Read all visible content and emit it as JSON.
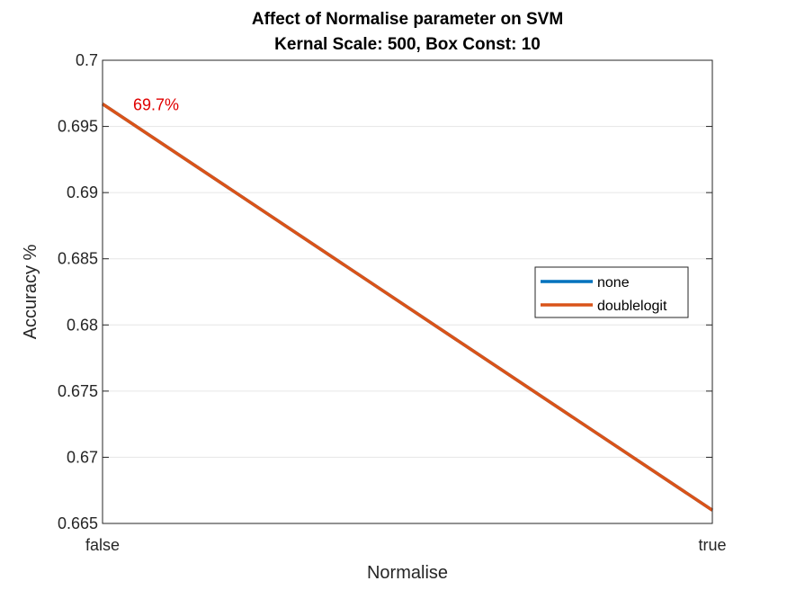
{
  "chart_data": {
    "type": "line",
    "title": "Affect of Normalise parameter on SVM",
    "subtitle": "Kernal Scale: 500, Box Const: 10",
    "xlabel": "Normalise",
    "ylabel": "Accuracy %",
    "categories": [
      "false",
      "true"
    ],
    "ylim": [
      0.665,
      0.7
    ],
    "yticks": [
      "0.665",
      "0.67",
      "0.675",
      "0.68",
      "0.685",
      "0.69",
      "0.695",
      "0.7"
    ],
    "ytick_values": [
      0.665,
      0.67,
      0.675,
      0.68,
      0.685,
      0.69,
      0.695,
      0.7
    ],
    "grid": "horizontal",
    "legend_position": "right",
    "series": [
      {
        "name": "none",
        "values": [
          0.6967,
          0.666
        ],
        "color": "#0072BD"
      },
      {
        "name": "doublelogit",
        "values": [
          0.6967,
          0.666
        ],
        "color": "#D95319"
      }
    ],
    "annotations": [
      {
        "text": "69.7%",
        "category": "false",
        "value": 0.6967,
        "color": "#E00000"
      }
    ]
  }
}
